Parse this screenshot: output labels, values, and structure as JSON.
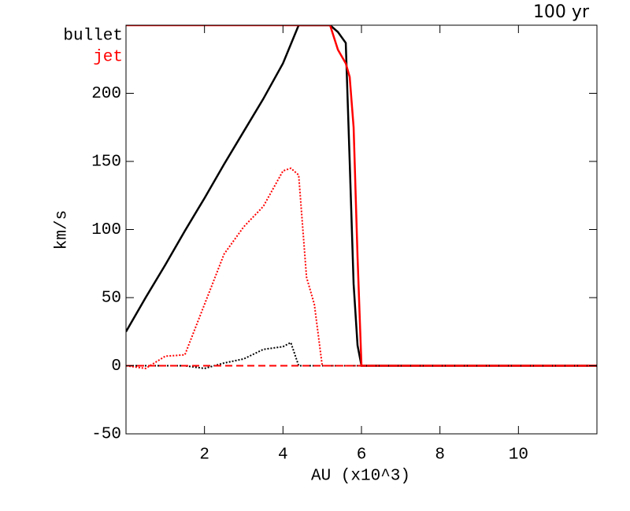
{
  "chart_data": {
    "type": "line",
    "title": "100 yr",
    "x_label": "AU (x10^3)",
    "y_label": "km/s",
    "x": [
      0,
      0.5,
      1,
      1.5,
      2,
      2.5,
      3,
      3.5,
      4,
      4.2,
      4.4,
      4.6,
      4.8,
      5,
      5.2,
      5.4,
      5.6,
      5.7,
      5.8,
      5.9,
      6,
      6.5,
      7,
      8,
      9,
      10,
      11,
      12
    ],
    "series": [
      {
        "name": "bullet",
        "color": "#000000",
        "dash": "solid",
        "values": [
          25,
          50,
          74,
          99,
          123,
          148,
          172,
          196,
          222,
          236,
          250,
          250,
          250,
          250,
          250,
          245,
          237,
          150,
          60,
          15,
          0,
          0,
          0,
          0,
          0,
          0,
          0,
          0
        ]
      },
      {
        "name": "jet",
        "color": "#ff0000",
        "dash": "solid",
        "values": [
          250,
          250,
          250,
          250,
          250,
          250,
          250,
          250,
          250,
          250,
          250,
          250,
          250,
          250,
          250,
          232,
          222,
          212,
          175,
          80,
          0,
          0,
          0,
          0,
          0,
          0,
          0,
          0
        ]
      },
      {
        "color": "#000000",
        "dash": "dot",
        "values": [
          0,
          0,
          0,
          0,
          -2,
          2,
          5,
          12,
          14,
          17,
          0,
          0,
          0,
          0,
          0,
          0,
          0,
          0,
          0,
          0,
          0,
          0,
          0,
          0,
          0,
          0,
          0,
          0
        ]
      },
      {
        "color": "#ff0000",
        "dash": "dot",
        "values": [
          0,
          -2,
          7,
          8,
          45,
          82,
          102,
          117,
          143,
          145,
          140,
          65,
          45,
          0,
          0,
          0,
          0,
          0,
          0,
          0,
          0,
          0,
          0,
          0,
          0,
          0,
          0,
          0
        ]
      },
      {
        "color": "#ff0000",
        "dash": "dash",
        "values": [
          0,
          0,
          0,
          0,
          0,
          0,
          0,
          0,
          0,
          0,
          0,
          0,
          0,
          0,
          0,
          0,
          0,
          0,
          0,
          0,
          0,
          0,
          0,
          0,
          0,
          0,
          0,
          0
        ]
      }
    ],
    "xlim": [
      0,
      12
    ],
    "ylim": [
      -50,
      250
    ],
    "xticks": [
      2,
      4,
      6,
      8,
      10
    ],
    "yticks": [
      -50,
      0,
      50,
      100,
      150,
      200
    ]
  }
}
